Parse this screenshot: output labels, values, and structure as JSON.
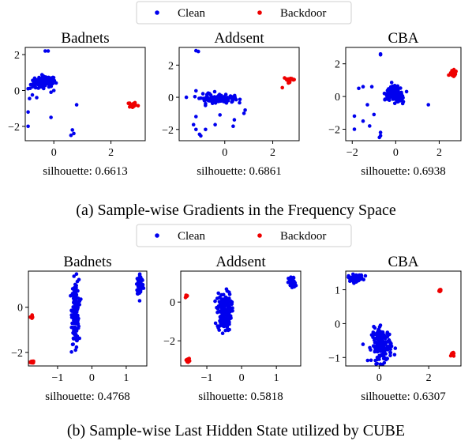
{
  "figure": {
    "legend_entries": [
      "Clean",
      "Backdoor"
    ],
    "colors": {
      "Clean": "#0000ee",
      "Backdoor": "#ee0000",
      "axes": "#000000"
    },
    "row_a_caption": "(a) Sample-wise Gradients in the Frequency Space",
    "row_b_caption": "(b) Sample-wise Last Hidden State utilized by CUBE"
  },
  "chart_data": [
    {
      "type": "scatter",
      "row": "a",
      "title": "Badnets",
      "silhouette_label": "silhouette: 0.6613",
      "xlim": [
        -1.0,
        3.2
      ],
      "ylim": [
        -2.8,
        2.4
      ],
      "xticks": [
        0,
        2
      ],
      "yticks": [
        -2,
        0,
        2
      ],
      "series": [
        {
          "name": "Clean",
          "clusters": [
            {
              "x": -0.3,
              "y": 0.5,
              "sx": 0.18,
              "sy": 0.15,
              "n": 90
            },
            {
              "x": -0.6,
              "y": 0.3,
              "sx": 0.12,
              "sy": 0.12,
              "n": 20
            }
          ],
          "points": [
            [
              -0.3,
              2.2
            ],
            [
              -0.2,
              2.2
            ],
            [
              -0.9,
              0.1
            ],
            [
              -0.75,
              -0.25
            ],
            [
              -0.85,
              -0.45
            ],
            [
              -0.6,
              -0.4
            ],
            [
              -0.1,
              -0.1
            ],
            [
              0.8,
              -0.8
            ],
            [
              -0.9,
              -1.2
            ],
            [
              -0.1,
              -1.5
            ],
            [
              0.65,
              -2.2
            ],
            [
              0.7,
              -2.4
            ],
            [
              0.6,
              -2.5
            ],
            [
              -0.9,
              -2.0
            ],
            [
              0.0,
              0.0
            ]
          ]
        },
        {
          "name": "Backdoor",
          "clusters": [
            {
              "x": 2.75,
              "y": -0.8,
              "sx": 0.06,
              "sy": 0.08,
              "n": 25
            }
          ],
          "points": [
            [
              2.95,
              -0.85
            ]
          ]
        }
      ]
    },
    {
      "type": "scatter",
      "row": "a",
      "title": "Addsent",
      "silhouette_label": "silhouette: 0.6861",
      "xlim": [
        -1.9,
        3.1
      ],
      "ylim": [
        -2.7,
        3.1
      ],
      "xticks": [
        0,
        2
      ],
      "yticks": [
        -2,
        0,
        2
      ],
      "series": [
        {
          "name": "Clean",
          "clusters": [
            {
              "x": -0.2,
              "y": -0.1,
              "sx": 0.3,
              "sy": 0.12,
              "n": 110
            },
            {
              "x": -0.6,
              "y": 0.0,
              "sx": 0.2,
              "sy": 0.15,
              "n": 20
            }
          ],
          "points": [
            [
              -1.2,
              2.9
            ],
            [
              -1.1,
              2.85
            ],
            [
              -1.2,
              0.4
            ],
            [
              -1.2,
              -1.2
            ],
            [
              -1.3,
              -1.7
            ],
            [
              -1.2,
              -2.0
            ],
            [
              -1.05,
              -2.3
            ],
            [
              -1.0,
              -2.4
            ],
            [
              -0.8,
              -0.4
            ],
            [
              -0.8,
              -2.0
            ],
            [
              -0.4,
              -1.7
            ],
            [
              -0.2,
              -1.1
            ],
            [
              0.4,
              -1.4
            ],
            [
              0.35,
              -1.8
            ],
            [
              0.85,
              -0.8
            ],
            [
              0.8,
              -1.0
            ],
            [
              -1.6,
              0.0
            ]
          ]
        },
        {
          "name": "Backdoor",
          "clusters": [
            {
              "x": 2.7,
              "y": 1.1,
              "sx": 0.12,
              "sy": 0.08,
              "n": 22
            }
          ],
          "points": [
            [
              2.4,
              0.6
            ]
          ]
        }
      ]
    },
    {
      "type": "scatter",
      "row": "a",
      "title": "CBA",
      "silhouette_label": "silhouette: 0.6938",
      "xlim": [
        -2.3,
        3.0
      ],
      "ylim": [
        -2.7,
        3.0
      ],
      "xticks": [
        -2,
        0,
        2
      ],
      "yticks": [
        -2,
        0,
        2
      ],
      "series": [
        {
          "name": "Clean",
          "clusters": [
            {
              "x": -0.1,
              "y": 0.2,
              "sx": 0.2,
              "sy": 0.2,
              "n": 100
            },
            {
              "x": 0.1,
              "y": -0.2,
              "sx": 0.15,
              "sy": 0.15,
              "n": 30
            }
          ],
          "points": [
            [
              -0.7,
              2.6
            ],
            [
              -0.7,
              2.55
            ],
            [
              -1.5,
              0.6
            ],
            [
              -1.7,
              0.5
            ],
            [
              -1.3,
              -0.5
            ],
            [
              -1.0,
              -1.1
            ],
            [
              -1.9,
              -1.2
            ],
            [
              -1.5,
              -1.5
            ],
            [
              -1.2,
              -1.8
            ],
            [
              -1.9,
              -2.0
            ],
            [
              -1.1,
              0.6
            ],
            [
              -0.7,
              -2.2
            ],
            [
              -0.7,
              -2.4
            ],
            [
              -0.75,
              -2.5
            ],
            [
              1.5,
              -0.5
            ],
            [
              -0.5,
              -0.2
            ],
            [
              0.5,
              0.3
            ]
          ]
        },
        {
          "name": "Backdoor",
          "clusters": [
            {
              "x": 2.65,
              "y": 1.4,
              "sx": 0.08,
              "sy": 0.1,
              "n": 22
            }
          ],
          "points": []
        }
      ]
    },
    {
      "type": "scatter",
      "row": "b",
      "title": "Badnets",
      "silhouette_label": "silhouette: 0.4768",
      "xlim": [
        -1.85,
        1.6
      ],
      "ylim": [
        -2.6,
        1.6
      ],
      "xticks": [
        -1,
        0,
        1
      ],
      "yticks": [
        -2,
        0
      ],
      "series": [
        {
          "name": "Clean",
          "clusters": [
            {
              "x": -0.48,
              "y": -0.2,
              "sx": 0.05,
              "sy": 0.7,
              "n": 180
            },
            {
              "x": 1.4,
              "y": 1.0,
              "sx": 0.05,
              "sy": 0.25,
              "n": 60
            }
          ],
          "points": []
        },
        {
          "name": "Backdoor",
          "clusters": [
            {
              "x": -1.75,
              "y": -0.45,
              "sx": 0.015,
              "sy": 0.06,
              "n": 10
            },
            {
              "x": -1.75,
              "y": -2.42,
              "sx": 0.03,
              "sy": 0.03,
              "n": 14
            }
          ],
          "points": []
        }
      ]
    },
    {
      "type": "scatter",
      "row": "b",
      "title": "Addsent",
      "silhouette_label": "silhouette: 0.5818",
      "xlim": [
        -1.75,
        1.7
      ],
      "ylim": [
        -3.3,
        1.6
      ],
      "xticks": [
        -1,
        0,
        1
      ],
      "yticks": [
        -2,
        0
      ],
      "series": [
        {
          "name": "Clean",
          "clusters": [
            {
              "x": -0.5,
              "y": -0.5,
              "sx": 0.1,
              "sy": 0.5,
              "n": 160
            },
            {
              "x": 1.45,
              "y": 1.0,
              "sx": 0.05,
              "sy": 0.15,
              "n": 50
            }
          ],
          "points": []
        },
        {
          "name": "Backdoor",
          "clusters": [
            {
              "x": -1.58,
              "y": 0.3,
              "sx": 0.015,
              "sy": 0.05,
              "n": 8
            },
            {
              "x": -1.55,
              "y": -3.0,
              "sx": 0.025,
              "sy": 0.04,
              "n": 14
            }
          ],
          "points": []
        }
      ]
    },
    {
      "type": "scatter",
      "row": "b",
      "title": "CBA",
      "silhouette_label": "silhouette: 0.6307",
      "xlim": [
        -1.35,
        3.3
      ],
      "ylim": [
        -1.25,
        1.55
      ],
      "xticks": [
        0,
        2
      ],
      "yticks": [
        -1,
        0,
        1
      ],
      "series": [
        {
          "name": "Clean",
          "clusters": [
            {
              "x": -0.95,
              "y": 1.35,
              "sx": 0.15,
              "sy": 0.05,
              "n": 70
            },
            {
              "x": 0.1,
              "y": -0.65,
              "sx": 0.2,
              "sy": 0.25,
              "n": 170
            }
          ],
          "points": []
        },
        {
          "name": "Backdoor",
          "clusters": [
            {
              "x": 2.45,
              "y": 0.98,
              "sx": 0.03,
              "sy": 0.02,
              "n": 8
            },
            {
              "x": 2.95,
              "y": -0.9,
              "sx": 0.03,
              "sy": 0.04,
              "n": 12
            }
          ],
          "points": []
        }
      ]
    }
  ]
}
